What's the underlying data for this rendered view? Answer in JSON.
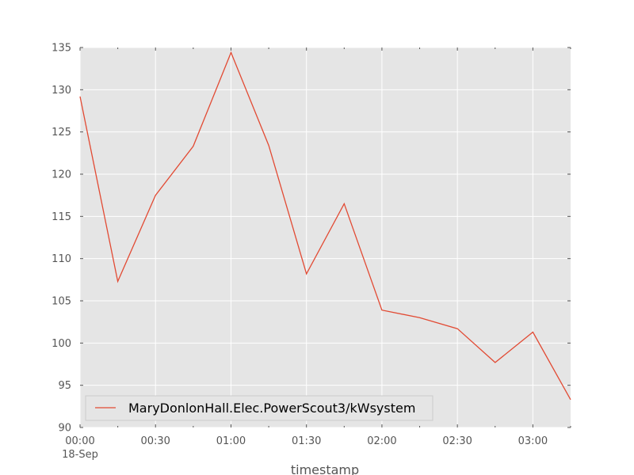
{
  "chart_data": {
    "type": "line",
    "title": "",
    "xlabel": "timestamp",
    "ylabel": "",
    "ylim": [
      90,
      135
    ],
    "yticks": [
      90,
      95,
      100,
      105,
      110,
      115,
      120,
      125,
      130,
      135
    ],
    "xlim": [
      "00:00",
      "03:15"
    ],
    "xticks": [
      {
        "label": "00:00",
        "sublabel": "18-Sep",
        "x": "00:00"
      },
      {
        "label": "00:30",
        "x": "00:30"
      },
      {
        "label": "01:00",
        "x": "01:00"
      },
      {
        "label": "01:30",
        "x": "01:30"
      },
      {
        "label": "02:00",
        "x": "02:00"
      },
      {
        "label": "02:30",
        "x": "02:30"
      },
      {
        "label": "03:00",
        "x": "03:00"
      }
    ],
    "grid": true,
    "legend_position": "lower-left",
    "series": [
      {
        "name": "MaryDonlonHall.Elec.PowerScout3/kWsystem",
        "color": "#e24a33",
        "x": [
          "00:00",
          "00:15",
          "00:30",
          "00:45",
          "01:00",
          "01:15",
          "01:30",
          "01:45",
          "02:00",
          "02:15",
          "02:30",
          "02:45",
          "03:00",
          "03:15"
        ],
        "values": [
          129.2,
          107.3,
          117.5,
          123.3,
          134.4,
          123.4,
          108.2,
          116.5,
          103.9,
          103.0,
          101.7,
          97.7,
          101.3,
          93.3
        ]
      }
    ]
  }
}
